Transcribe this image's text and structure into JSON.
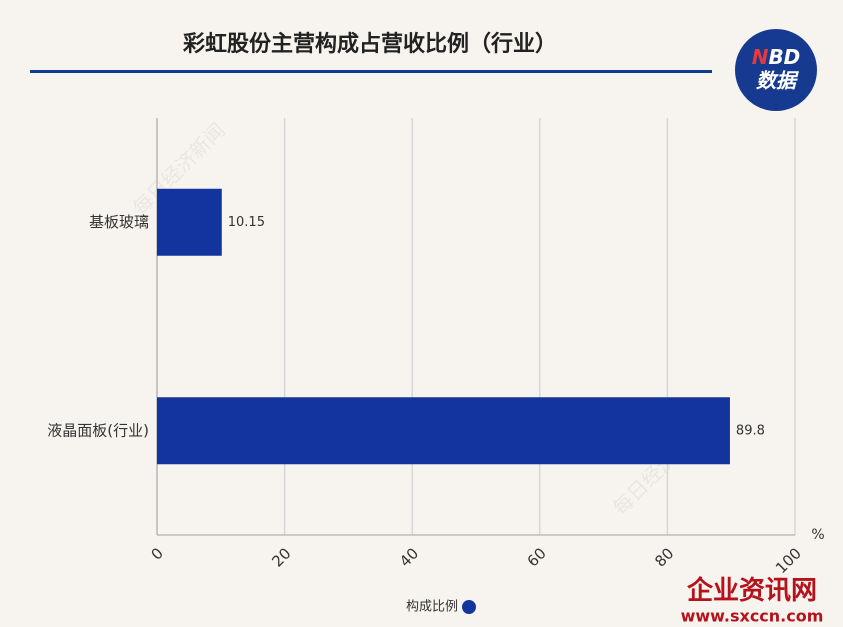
{
  "chart_data": {
    "type": "hbar",
    "title": "彩虹股份主营构成占营收比例（行业）",
    "categories": [
      "基板玻璃",
      "液晶面板(行业)"
    ],
    "series": [
      {
        "name": "构成比例",
        "color": "#12349c",
        "values": [
          10.15,
          89.8
        ]
      }
    ],
    "x_unit": "%",
    "xlim": [
      0,
      100
    ],
    "xticks": [
      0,
      20,
      40,
      60,
      80,
      100
    ],
    "grid": true
  },
  "logo": {
    "n": "N",
    "bd": "BD",
    "text": "数据"
  },
  "watermark": {
    "source": "每日经济新闻",
    "site": "企业资讯网",
    "url": "www.sxccn.com"
  }
}
